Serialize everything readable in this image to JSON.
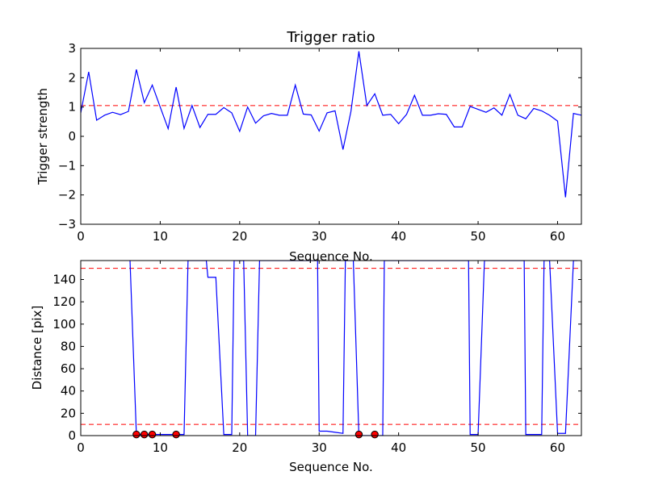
{
  "colors": {
    "line": "#0000ff",
    "threshold": "#ff0000",
    "marker_fill": "#ff0000",
    "axes": "#000000",
    "background": "#ffffff"
  },
  "chart_data": [
    {
      "type": "line",
      "title": "Trigger ratio",
      "xlabel": "Sequence No.",
      "ylabel": "Trigger strength",
      "xlim": [
        0,
        63
      ],
      "ylim": [
        -3,
        3
      ],
      "xticks": [
        0,
        10,
        20,
        30,
        40,
        50,
        60
      ],
      "yticks": [
        -3,
        -2,
        -1,
        0,
        1,
        2,
        3
      ],
      "grid": false,
      "legend": "none",
      "series": [
        {
          "x": [
            0,
            1,
            2,
            3,
            4,
            5,
            6,
            7,
            8,
            9,
            10,
            11,
            12,
            13,
            14,
            15,
            16,
            17,
            18,
            19,
            20,
            21,
            22,
            23,
            24,
            25,
            26,
            27,
            28,
            29,
            30,
            31,
            32,
            33,
            34,
            35,
            36,
            37,
            38,
            39,
            40,
            41,
            42,
            43,
            44,
            45,
            46,
            47,
            48,
            49,
            50,
            51,
            52,
            53,
            54,
            55,
            56,
            57,
            58,
            59,
            60,
            61,
            62,
            63
          ],
          "y": [
            0.8,
            2.2,
            0.55,
            0.72,
            0.82,
            0.74,
            0.85,
            2.28,
            1.15,
            1.75,
            1.0,
            0.26,
            1.68,
            0.27,
            1.05,
            0.3,
            0.75,
            0.75,
            0.98,
            0.8,
            0.17,
            1.0,
            0.45,
            0.7,
            0.78,
            0.72,
            0.72,
            1.75,
            0.76,
            0.73,
            0.18,
            0.8,
            0.87,
            -0.45,
            0.85,
            2.9,
            1.05,
            1.45,
            0.72,
            0.75,
            0.43,
            0.75,
            1.4,
            0.72,
            0.72,
            0.77,
            0.75,
            0.32,
            0.32,
            1.02,
            0.92,
            0.82,
            0.97,
            0.72,
            1.43,
            0.72,
            0.6,
            0.95,
            0.87,
            0.72,
            0.52,
            -2.08,
            0.78,
            0.72
          ]
        }
      ],
      "reference_lines": [
        {
          "orientation": "horizontal",
          "y": 1.05,
          "style": "dashed"
        }
      ]
    },
    {
      "type": "line",
      "title": "",
      "xlabel": "Sequence No.",
      "ylabel": "Distance [pix]",
      "xlim": [
        0,
        63
      ],
      "ylim": [
        0,
        157
      ],
      "xticks": [
        0,
        10,
        20,
        30,
        40,
        50,
        60
      ],
      "yticks": [
        0,
        20,
        40,
        60,
        80,
        100,
        120,
        140
      ],
      "grid": false,
      "legend": "none",
      "series": [
        {
          "x": [
            6.2,
            7,
            8,
            9,
            12,
            13,
            13.5,
            15.8,
            16,
            17,
            18,
            19,
            19.3,
            20.5,
            21,
            22,
            22.5,
            29.8,
            30,
            31,
            32,
            33,
            33.3,
            34.3,
            35,
            37,
            38,
            38.2,
            48.8,
            49,
            50,
            50.8,
            55.8,
            56,
            57,
            58,
            58.3,
            59,
            60,
            61,
            62,
            62.5
          ],
          "y": [
            157,
            1,
            1,
            1,
            1,
            1,
            157,
            157,
            142,
            142,
            1,
            1,
            157,
            157,
            0,
            0,
            157,
            157,
            4,
            4,
            3,
            2,
            157,
            157,
            0,
            0,
            0,
            157,
            157,
            1,
            1,
            157,
            157,
            1,
            1,
            1,
            157,
            157,
            2,
            2,
            157,
            157
          ]
        }
      ],
      "markers": {
        "x": [
          7,
          8,
          9,
          12,
          35,
          37
        ],
        "y": [
          1,
          1,
          1,
          1,
          1,
          1
        ]
      },
      "reference_lines": [
        {
          "orientation": "horizontal",
          "y": 150,
          "style": "dashed"
        },
        {
          "orientation": "horizontal",
          "y": 10,
          "style": "dashed"
        }
      ]
    }
  ]
}
